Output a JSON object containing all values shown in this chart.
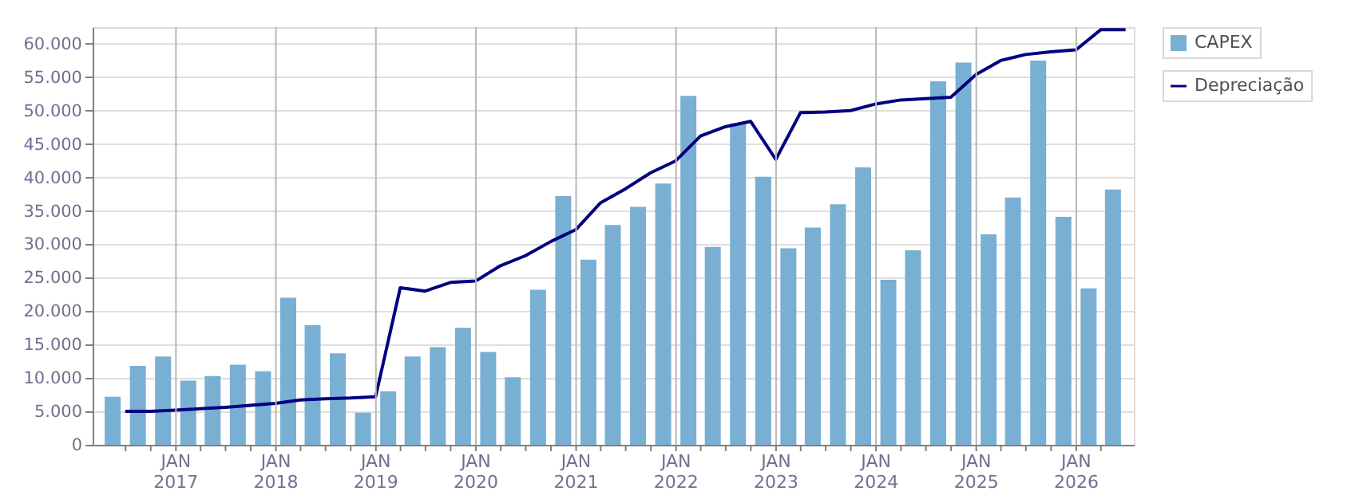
{
  "chart_data": {
    "type": "bar",
    "xlim": [
      "2016-04-01",
      "2026-07-01"
    ],
    "xticks": [
      {
        "value": "2016-07-01",
        "label": null
      },
      {
        "value": "2016-10-01",
        "label": null
      },
      {
        "value": "2017-01-01",
        "label": "JAN\n2017"
      },
      {
        "value": "2017-04-01",
        "label": null
      },
      {
        "value": "2017-07-01",
        "label": null
      },
      {
        "value": "2017-10-01",
        "label": null
      },
      {
        "value": "2018-01-01",
        "label": "JAN\n2018"
      },
      {
        "value": "2018-04-01",
        "label": null
      },
      {
        "value": "2018-07-01",
        "label": null
      },
      {
        "value": "2018-10-01",
        "label": null
      },
      {
        "value": "2019-01-01",
        "label": "JAN\n2019"
      },
      {
        "value": "2019-04-01",
        "label": null
      },
      {
        "value": "2019-07-01",
        "label": null
      },
      {
        "value": "2019-10-01",
        "label": null
      },
      {
        "value": "2020-01-01",
        "label": "JAN\n2020"
      },
      {
        "value": "2020-04-01",
        "label": null
      },
      {
        "value": "2020-07-01",
        "label": null
      },
      {
        "value": "2020-10-01",
        "label": null
      },
      {
        "value": "2021-01-01",
        "label": "JAN\n2021"
      },
      {
        "value": "2021-04-01",
        "label": null
      },
      {
        "value": "2021-07-01",
        "label": null
      },
      {
        "value": "2021-10-01",
        "label": null
      },
      {
        "value": "2022-01-01",
        "label": "JAN\n2022"
      },
      {
        "value": "2022-04-01",
        "label": null
      },
      {
        "value": "2022-07-01",
        "label": null
      },
      {
        "value": "2022-10-01",
        "label": null
      },
      {
        "value": "2023-01-01",
        "label": "JAN\n2023"
      },
      {
        "value": "2023-04-01",
        "label": null
      },
      {
        "value": "2023-07-01",
        "label": null
      },
      {
        "value": "2023-10-01",
        "label": null
      },
      {
        "value": "2024-01-01",
        "label": "JAN\n2024"
      },
      {
        "value": "2024-04-01",
        "label": null
      },
      {
        "value": "2024-07-01",
        "label": null
      },
      {
        "value": "2024-10-01",
        "label": null
      },
      {
        "value": "2025-01-01",
        "label": "JAN\n2025"
      },
      {
        "value": "2025-04-01",
        "label": null
      },
      {
        "value": "2025-07-01",
        "label": null
      },
      {
        "value": "2025-10-01",
        "label": null
      },
      {
        "value": "2026-01-01",
        "label": "JAN\n2026"
      },
      {
        "value": "2026-04-01",
        "label": null
      }
    ],
    "ylim": [
      0,
      62500
    ],
    "yticks": [
      {
        "value": 0,
        "label": "0"
      },
      {
        "value": 5000,
        "label": "5.000"
      },
      {
        "value": 10000,
        "label": "10.000"
      },
      {
        "value": 15000,
        "label": "15.000"
      },
      {
        "value": 20000,
        "label": "20.000"
      },
      {
        "value": 25000,
        "label": "25.000"
      },
      {
        "value": 30000,
        "label": "30.000"
      },
      {
        "value": 35000,
        "label": "35.000"
      },
      {
        "value": 40000,
        "label": "40.000"
      },
      {
        "value": 45000,
        "label": "45.000"
      },
      {
        "value": 50000,
        "label": "50.000"
      },
      {
        "value": 55000,
        "label": "55.000"
      },
      {
        "value": 60000,
        "label": "60.000"
      }
    ],
    "grid": true,
    "legend": "top right",
    "series": [
      {
        "name": "CAPEX",
        "color": "#78afd2",
        "x": [
          "2016-05-15",
          "2016-08-15",
          "2016-11-15",
          "2017-02-15",
          "2017-05-15",
          "2017-08-15",
          "2017-11-15",
          "2018-02-15",
          "2018-05-15",
          "2018-08-15",
          "2018-11-15",
          "2019-02-15",
          "2019-05-15",
          "2019-08-15",
          "2019-11-15",
          "2020-02-15",
          "2020-05-15",
          "2020-08-15",
          "2020-11-15",
          "2021-02-15",
          "2021-05-15",
          "2021-08-15",
          "2021-11-15",
          "2022-02-15",
          "2022-05-15",
          "2022-08-15",
          "2022-11-15",
          "2023-02-15",
          "2023-05-15",
          "2023-08-15",
          "2023-11-15",
          "2024-02-15",
          "2024-05-15",
          "2024-08-15",
          "2024-11-15",
          "2025-02-15",
          "2025-05-15",
          "2025-08-15",
          "2025-11-15",
          "2026-02-15",
          "2026-05-15"
        ],
        "values": [
          7200,
          11800,
          13200,
          9600,
          10300,
          12000,
          11000,
          22000,
          17900,
          13700,
          4800,
          8000,
          13200,
          14600,
          17500,
          13900,
          10100,
          23200,
          37200,
          27700,
          32900,
          35600,
          39100,
          52200,
          29600,
          48100,
          40100,
          29400,
          32500,
          36000,
          41500,
          24700,
          29100,
          54400,
          57200,
          31500,
          37000,
          57500,
          34100,
          23400,
          38200
        ]
      },
      {
        "name": "Depreciação",
        "type": "line",
        "color": "#000080",
        "marker": "none",
        "line_style": "solid",
        "x": [
          "2016-06-30",
          "2016-09-30",
          "2016-12-31",
          "2017-03-31",
          "2017-06-30",
          "2017-09-30",
          "2017-12-31",
          "2018-03-31",
          "2018-06-30",
          "2018-09-30",
          "2018-12-31",
          "2019-03-31",
          "2019-06-30",
          "2019-09-30",
          "2019-12-31",
          "2020-03-31",
          "2020-06-30",
          "2020-09-30",
          "2020-12-31",
          "2021-03-31",
          "2021-06-30",
          "2021-09-30",
          "2021-12-31",
          "2022-03-31",
          "2022-06-30",
          "2022-09-30",
          "2022-12-31",
          "2023-03-31",
          "2023-06-30",
          "2023-09-30",
          "2023-12-31",
          "2024-03-31",
          "2024-06-30",
          "2024-09-30",
          "2024-12-31",
          "2025-03-31",
          "2025-06-30",
          "2025-09-30",
          "2025-12-31",
          "2026-03-31",
          "2026-06-30"
        ],
        "values": [
          5000,
          5000,
          5200,
          5400,
          5600,
          5900,
          6200,
          6700,
          6900,
          7000,
          7200,
          23500,
          23000,
          24300,
          24500,
          26800,
          28300,
          30400,
          32200,
          36200,
          38300,
          40700,
          42500,
          46200,
          47600,
          48400,
          42700,
          49700,
          49800,
          50000,
          51000,
          51600,
          51800,
          52000,
          55400,
          57500,
          58400,
          58800,
          59100,
          62100,
          62100
        ]
      }
    ]
  }
}
